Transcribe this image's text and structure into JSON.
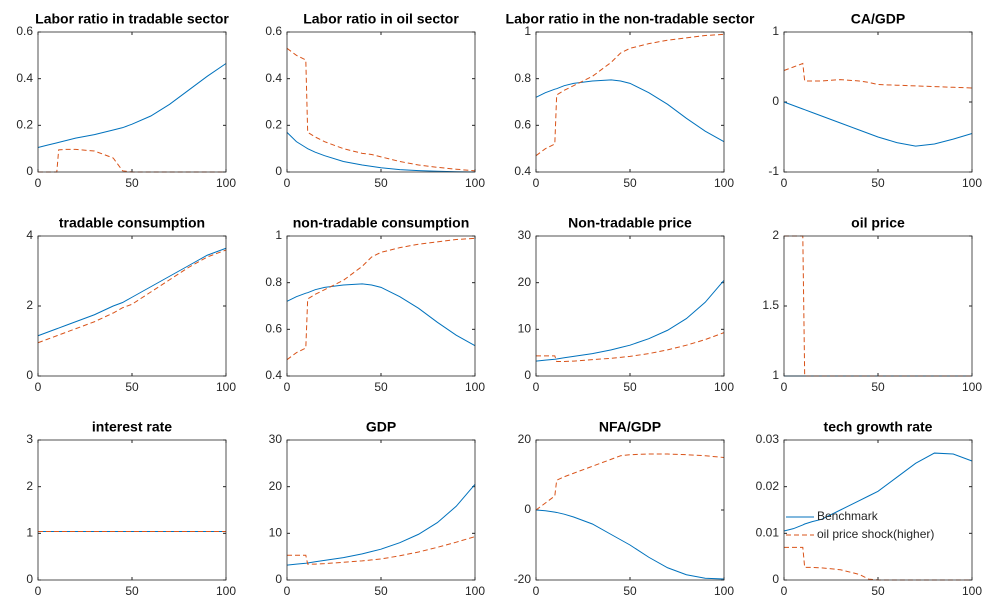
{
  "chart_data": [
    {
      "type": "line",
      "title": "Labor ratio in tradable sector",
      "x": [
        0,
        5,
        10,
        11,
        15,
        20,
        30,
        40,
        45,
        50,
        60,
        70,
        80,
        90,
        100
      ],
      "xlim": [
        0,
        100
      ],
      "xticks": [
        0,
        50,
        100
      ],
      "ylim": [
        0,
        0.6
      ],
      "yticks": [
        0,
        0.2,
        0.4,
        0.6
      ],
      "series": [
        {
          "color": "#0072bd",
          "style": "solid",
          "values": [
            0.105,
            0.115,
            0.125,
            0.127,
            0.135,
            0.145,
            0.16,
            0.18,
            0.19,
            0.205,
            0.24,
            0.29,
            0.35,
            0.41,
            0.465
          ]
        },
        {
          "color": "#d95319",
          "style": "dashed",
          "values": [
            0,
            0,
            0,
            0.095,
            0.097,
            0.097,
            0.09,
            0.06,
            0.005,
            0,
            0,
            0,
            0,
            0,
            0
          ]
        }
      ]
    },
    {
      "type": "line",
      "title": "Labor ratio in oil sector",
      "x": [
        0,
        5,
        10,
        11,
        15,
        20,
        30,
        40,
        45,
        50,
        60,
        70,
        80,
        90,
        100
      ],
      "xlim": [
        0,
        100
      ],
      "xticks": [
        0,
        50,
        100
      ],
      "ylim": [
        0,
        0.6
      ],
      "yticks": [
        0,
        0.2,
        0.4,
        0.6
      ],
      "series": [
        {
          "color": "#0072bd",
          "style": "solid",
          "values": [
            0.17,
            0.13,
            0.105,
            0.1,
            0.085,
            0.07,
            0.045,
            0.03,
            0.024,
            0.018,
            0.01,
            0.006,
            0.003,
            0.001,
            0
          ]
        },
        {
          "color": "#d95319",
          "style": "dashed",
          "values": [
            0.53,
            0.5,
            0.48,
            0.17,
            0.15,
            0.13,
            0.1,
            0.08,
            0.075,
            0.065,
            0.045,
            0.03,
            0.02,
            0.012,
            0.005
          ]
        }
      ]
    },
    {
      "type": "line",
      "title": "Labor ratio in the non-tradable sector",
      "x": [
        0,
        5,
        10,
        11,
        15,
        20,
        30,
        40,
        45,
        50,
        60,
        70,
        80,
        90,
        100
      ],
      "xlim": [
        0,
        100
      ],
      "xticks": [
        0,
        50,
        100
      ],
      "ylim": [
        0.4,
        1
      ],
      "yticks": [
        0.4,
        0.6,
        0.8,
        1
      ],
      "series": [
        {
          "color": "#0072bd",
          "style": "solid",
          "values": [
            0.72,
            0.74,
            0.755,
            0.757,
            0.77,
            0.78,
            0.79,
            0.795,
            0.79,
            0.78,
            0.74,
            0.69,
            0.63,
            0.575,
            0.53
          ]
        },
        {
          "color": "#d95319",
          "style": "dashed",
          "values": [
            0.47,
            0.5,
            0.52,
            0.73,
            0.75,
            0.77,
            0.81,
            0.87,
            0.91,
            0.93,
            0.95,
            0.965,
            0.975,
            0.985,
            0.99
          ]
        }
      ]
    },
    {
      "type": "line",
      "title": "CA/GDP",
      "x": [
        0,
        5,
        10,
        11,
        15,
        20,
        30,
        40,
        45,
        50,
        60,
        70,
        80,
        90,
        100
      ],
      "xlim": [
        0,
        100
      ],
      "xticks": [
        0,
        50,
        100
      ],
      "ylim": [
        -1,
        1
      ],
      "yticks": [
        -1,
        0,
        1
      ],
      "series": [
        {
          "color": "#0072bd",
          "style": "solid",
          "values": [
            0,
            -0.05,
            -0.1,
            -0.11,
            -0.15,
            -0.2,
            -0.3,
            -0.4,
            -0.45,
            -0.5,
            -0.58,
            -0.63,
            -0.6,
            -0.53,
            -0.45
          ]
        },
        {
          "color": "#d95319",
          "style": "dashed",
          "values": [
            0.45,
            0.5,
            0.55,
            0.3,
            0.3,
            0.3,
            0.32,
            0.3,
            0.28,
            0.25,
            0.24,
            0.23,
            0.22,
            0.21,
            0.2
          ]
        }
      ]
    },
    {
      "type": "line",
      "title": "tradable consumption",
      "x": [
        0,
        5,
        10,
        11,
        15,
        20,
        30,
        40,
        45,
        50,
        60,
        70,
        80,
        90,
        100
      ],
      "xlim": [
        0,
        100
      ],
      "xticks": [
        0,
        50,
        100
      ],
      "ylim": [
        0,
        4
      ],
      "yticks": [
        0,
        2,
        4
      ],
      "series": [
        {
          "color": "#0072bd",
          "style": "solid",
          "values": [
            1.15,
            1.25,
            1.35,
            1.37,
            1.45,
            1.55,
            1.75,
            2.0,
            2.1,
            2.25,
            2.55,
            2.85,
            3.15,
            3.45,
            3.65
          ]
        },
        {
          "color": "#d95319",
          "style": "dashed",
          "values": [
            0.95,
            1.05,
            1.15,
            1.17,
            1.25,
            1.35,
            1.55,
            1.8,
            1.95,
            2.05,
            2.4,
            2.75,
            3.1,
            3.4,
            3.6
          ]
        }
      ]
    },
    {
      "type": "line",
      "title": "non-tradable consumption",
      "x": [
        0,
        5,
        10,
        11,
        15,
        20,
        30,
        40,
        45,
        50,
        60,
        70,
        80,
        90,
        100
      ],
      "xlim": [
        0,
        100
      ],
      "xticks": [
        0,
        50,
        100
      ],
      "ylim": [
        0.4,
        1
      ],
      "yticks": [
        0.4,
        0.6,
        0.8,
        1
      ],
      "series": [
        {
          "color": "#0072bd",
          "style": "solid",
          "values": [
            0.72,
            0.74,
            0.755,
            0.757,
            0.77,
            0.78,
            0.79,
            0.795,
            0.79,
            0.78,
            0.74,
            0.69,
            0.63,
            0.575,
            0.53
          ]
        },
        {
          "color": "#d95319",
          "style": "dashed",
          "values": [
            0.47,
            0.5,
            0.52,
            0.73,
            0.75,
            0.77,
            0.81,
            0.87,
            0.91,
            0.93,
            0.95,
            0.965,
            0.975,
            0.985,
            0.99
          ]
        }
      ]
    },
    {
      "type": "line",
      "title": "Non-tradable price",
      "x": [
        0,
        5,
        10,
        11,
        15,
        20,
        30,
        40,
        45,
        50,
        60,
        70,
        80,
        90,
        100
      ],
      "xlim": [
        0,
        100
      ],
      "xticks": [
        0,
        50,
        100
      ],
      "ylim": [
        0,
        30
      ],
      "yticks": [
        0,
        10,
        20,
        30
      ],
      "series": [
        {
          "color": "#0072bd",
          "style": "solid",
          "values": [
            3.2,
            3.4,
            3.6,
            3.65,
            3.9,
            4.2,
            4.8,
            5.6,
            6.1,
            6.6,
            8.0,
            9.8,
            12.3,
            15.8,
            20.5
          ]
        },
        {
          "color": "#d95319",
          "style": "dashed",
          "values": [
            4.3,
            4.3,
            4.3,
            3.1,
            3.1,
            3.2,
            3.5,
            3.8,
            4,
            4.2,
            4.8,
            5.6,
            6.6,
            7.8,
            9.3
          ]
        }
      ]
    },
    {
      "type": "line",
      "title": "oil price",
      "x": [
        0,
        5,
        10,
        11,
        15,
        20,
        30,
        40,
        45,
        50,
        60,
        70,
        80,
        90,
        100
      ],
      "xlim": [
        0,
        100
      ],
      "xticks": [
        0,
        50,
        100
      ],
      "ylim": [
        1,
        2
      ],
      "yticks": [
        1,
        1.5,
        2
      ],
      "series": [
        {
          "color": "#0072bd",
          "style": "solid",
          "values": [
            1,
            1,
            1,
            1,
            1,
            1,
            1,
            1,
            1,
            1,
            1,
            1,
            1,
            1,
            1
          ]
        },
        {
          "color": "#d95319",
          "style": "dashed",
          "values": [
            2,
            2,
            2,
            1,
            1,
            1,
            1,
            1,
            1,
            1,
            1,
            1,
            1,
            1,
            1
          ]
        }
      ]
    },
    {
      "type": "line",
      "title": "interest rate",
      "x": [
        0,
        5,
        10,
        11,
        15,
        20,
        30,
        40,
        45,
        50,
        60,
        70,
        80,
        90,
        100
      ],
      "xlim": [
        0,
        100
      ],
      "xticks": [
        0,
        50,
        100
      ],
      "ylim": [
        0,
        3
      ],
      "yticks": [
        0,
        1,
        2,
        3
      ],
      "series": [
        {
          "color": "#0072bd",
          "style": "solid",
          "values": [
            1.04,
            1.04,
            1.04,
            1.04,
            1.04,
            1.04,
            1.04,
            1.04,
            1.04,
            1.04,
            1.04,
            1.04,
            1.04,
            1.04,
            1.04
          ]
        },
        {
          "color": "#d95319",
          "style": "dashed",
          "values": [
            1.04,
            1.04,
            1.04,
            1.04,
            1.04,
            1.04,
            1.04,
            1.04,
            1.04,
            1.04,
            1.04,
            1.04,
            1.04,
            1.04,
            1.04
          ]
        }
      ]
    },
    {
      "type": "line",
      "title": "GDP",
      "x": [
        0,
        5,
        10,
        11,
        15,
        20,
        30,
        40,
        45,
        50,
        60,
        70,
        80,
        90,
        100
      ],
      "xlim": [
        0,
        100
      ],
      "xticks": [
        0,
        50,
        100
      ],
      "ylim": [
        0,
        30
      ],
      "yticks": [
        0,
        10,
        20,
        30
      ],
      "series": [
        {
          "color": "#0072bd",
          "style": "solid",
          "values": [
            3.2,
            3.4,
            3.6,
            3.65,
            3.9,
            4.2,
            4.8,
            5.6,
            6.1,
            6.6,
            8.0,
            9.8,
            12.3,
            15.8,
            20.5
          ]
        },
        {
          "color": "#d95319",
          "style": "dashed",
          "values": [
            5.3,
            5.3,
            5.3,
            3.4,
            3.4,
            3.5,
            3.8,
            4.1,
            4.3,
            4.5,
            5.2,
            6,
            7,
            8.1,
            9.3
          ]
        }
      ]
    },
    {
      "type": "line",
      "title": "NFA/GDP",
      "x": [
        0,
        5,
        10,
        11,
        15,
        20,
        30,
        40,
        45,
        50,
        60,
        70,
        80,
        90,
        100
      ],
      "xlim": [
        0,
        100
      ],
      "xticks": [
        0,
        50,
        100
      ],
      "ylim": [
        -20,
        20
      ],
      "yticks": [
        -20,
        0,
        20
      ],
      "series": [
        {
          "color": "#0072bd",
          "style": "solid",
          "values": [
            0,
            -0.2,
            -0.6,
            -0.7,
            -1.2,
            -2,
            -4,
            -7,
            -8.5,
            -10,
            -13.5,
            -16.5,
            -18.5,
            -19.5,
            -19.7
          ]
        },
        {
          "color": "#d95319",
          "style": "dashed",
          "values": [
            0,
            2,
            4,
            8.5,
            9.5,
            10.5,
            12.5,
            14.5,
            15.5,
            15.8,
            16,
            16,
            15.8,
            15.5,
            15
          ]
        }
      ]
    },
    {
      "type": "line",
      "title": "tech growth rate",
      "x": [
        0,
        5,
        10,
        11,
        15,
        20,
        30,
        40,
        45,
        50,
        60,
        70,
        80,
        90,
        100
      ],
      "xlim": [
        0,
        100
      ],
      "xticks": [
        0,
        50,
        100
      ],
      "ylim": [
        0,
        0.03
      ],
      "yticks": [
        0,
        0.01,
        0.02,
        0.03
      ],
      "legend": "west",
      "series": [
        {
          "name": "Benchmark",
          "color": "#0072bd",
          "style": "solid",
          "values": [
            0.0105,
            0.011,
            0.0118,
            0.012,
            0.0125,
            0.013,
            0.015,
            0.017,
            0.018,
            0.019,
            0.022,
            0.025,
            0.0272,
            0.027,
            0.0255
          ]
        },
        {
          "name": "oil price shock(higher)",
          "color": "#d95319",
          "style": "dashed",
          "values": [
            0.007,
            0.007,
            0.007,
            0.0027,
            0.0027,
            0.0026,
            0.0022,
            0.0012,
            0.0002,
            0,
            0,
            0,
            0,
            0,
            0
          ]
        }
      ]
    }
  ]
}
